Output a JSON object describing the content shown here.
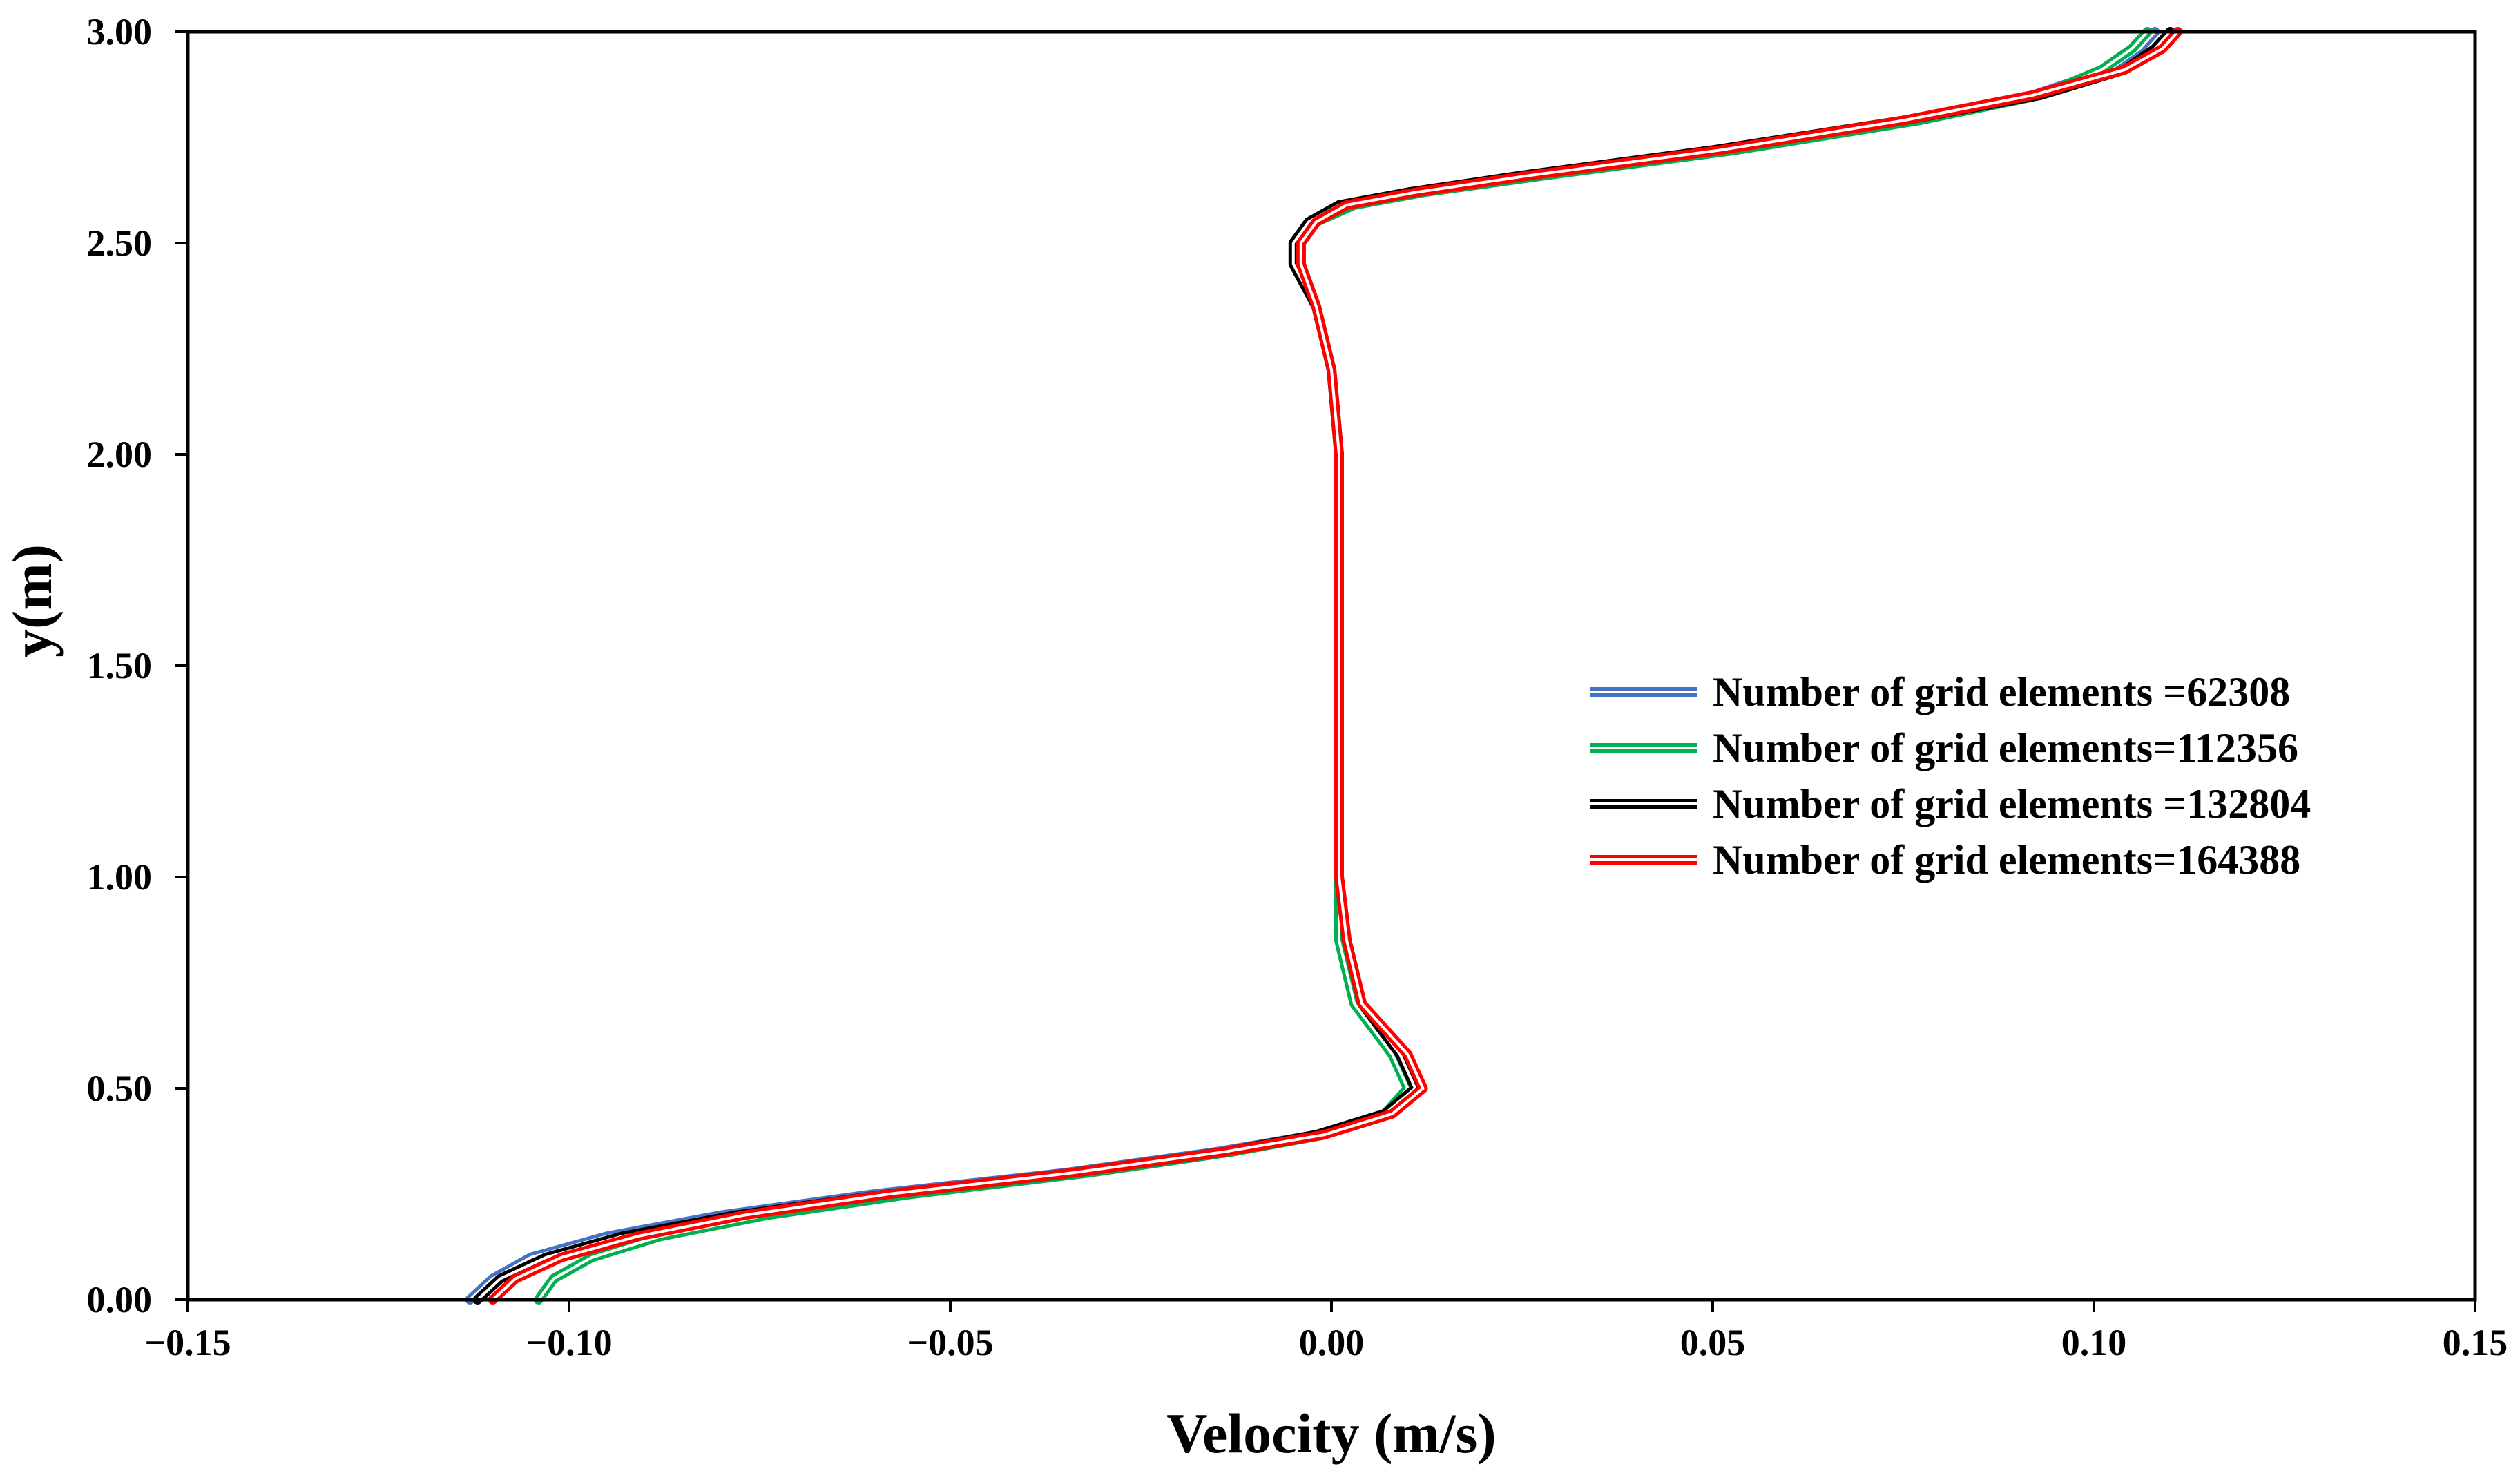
{
  "chart_data": {
    "type": "line",
    "title": "",
    "xlabel": "Velocity (m/s)",
    "ylabel": "y(m)",
    "xlim": [
      -0.15,
      0.15
    ],
    "ylim": [
      0.0,
      3.0
    ],
    "grid": false,
    "legend_position": "center-right",
    "x_ticks": [
      -0.15,
      -0.1,
      -0.05,
      0.0,
      0.05,
      0.1,
      0.15
    ],
    "x_tick_labels": [
      "−0.15",
      "−0.10",
      "−0.05",
      "0.00",
      "0.05",
      "0.10",
      "0.15"
    ],
    "y_ticks": [
      0.0,
      0.5,
      1.0,
      1.5,
      2.0,
      2.5,
      3.0
    ],
    "y_tick_labels": [
      "0.00",
      "0.50",
      "1.00",
      "1.50",
      "2.00",
      "2.50",
      "3.00"
    ],
    "series": [
      {
        "name": "Number of grid elements =62308",
        "color": "#4472C4",
        "points": [
          [
            -0.113,
            0.0
          ],
          [
            -0.11,
            0.05
          ],
          [
            -0.105,
            0.1
          ],
          [
            -0.095,
            0.15
          ],
          [
            -0.08,
            0.2
          ],
          [
            -0.06,
            0.25
          ],
          [
            -0.035,
            0.3
          ],
          [
            -0.015,
            0.35
          ],
          [
            -0.002,
            0.39
          ],
          [
            0.007,
            0.44
          ],
          [
            0.011,
            0.5
          ],
          [
            0.009,
            0.58
          ],
          [
            0.004,
            0.7
          ],
          [
            0.002,
            0.85
          ],
          [
            0.001,
            1.0
          ],
          [
            0.001,
            1.2
          ],
          [
            0.001,
            1.4
          ],
          [
            0.001,
            1.6
          ],
          [
            0.001,
            1.8
          ],
          [
            0.001,
            2.0
          ],
          [
            0.0,
            2.2
          ],
          [
            -0.002,
            2.35
          ],
          [
            -0.004,
            2.45
          ],
          [
            -0.004,
            2.5
          ],
          [
            -0.002,
            2.55
          ],
          [
            0.002,
            2.59
          ],
          [
            0.01,
            2.62
          ],
          [
            0.025,
            2.66
          ],
          [
            0.05,
            2.72
          ],
          [
            0.075,
            2.79
          ],
          [
            0.092,
            2.85
          ],
          [
            0.102,
            2.91
          ],
          [
            0.106,
            2.96
          ],
          [
            0.108,
            3.0
          ]
        ]
      },
      {
        "name": "Number of grid elements=112356",
        "color": "#00B050",
        "points": [
          [
            -0.104,
            0.0
          ],
          [
            -0.102,
            0.05
          ],
          [
            -0.097,
            0.1
          ],
          [
            -0.088,
            0.15
          ],
          [
            -0.074,
            0.2
          ],
          [
            -0.055,
            0.25
          ],
          [
            -0.032,
            0.3
          ],
          [
            -0.013,
            0.35
          ],
          [
            -0.001,
            0.39
          ],
          [
            0.007,
            0.44
          ],
          [
            0.01,
            0.5
          ],
          [
            0.008,
            0.58
          ],
          [
            0.003,
            0.7
          ],
          [
            0.001,
            0.85
          ],
          [
            0.001,
            1.0
          ],
          [
            0.001,
            1.2
          ],
          [
            0.001,
            1.4
          ],
          [
            0.001,
            1.6
          ],
          [
            0.001,
            1.8
          ],
          [
            0.001,
            2.0
          ],
          [
            0.0,
            2.2
          ],
          [
            -0.002,
            2.35
          ],
          [
            -0.004,
            2.45
          ],
          [
            -0.004,
            2.5
          ],
          [
            -0.002,
            2.55
          ],
          [
            0.003,
            2.59
          ],
          [
            0.012,
            2.62
          ],
          [
            0.028,
            2.66
          ],
          [
            0.053,
            2.72
          ],
          [
            0.077,
            2.79
          ],
          [
            0.093,
            2.85
          ],
          [
            0.101,
            2.91
          ],
          [
            0.105,
            2.96
          ],
          [
            0.107,
            3.0
          ]
        ]
      },
      {
        "name": "Number of grid elements =132804",
        "color": "#000000",
        "points": [
          [
            -0.112,
            0.0
          ],
          [
            -0.109,
            0.05
          ],
          [
            -0.103,
            0.1
          ],
          [
            -0.093,
            0.15
          ],
          [
            -0.078,
            0.2
          ],
          [
            -0.058,
            0.25
          ],
          [
            -0.034,
            0.3
          ],
          [
            -0.014,
            0.35
          ],
          [
            -0.002,
            0.39
          ],
          [
            0.007,
            0.44
          ],
          [
            0.011,
            0.5
          ],
          [
            0.009,
            0.58
          ],
          [
            0.004,
            0.7
          ],
          [
            0.002,
            0.85
          ],
          [
            0.001,
            1.0
          ],
          [
            0.001,
            1.2
          ],
          [
            0.001,
            1.4
          ],
          [
            0.001,
            1.6
          ],
          [
            0.001,
            1.8
          ],
          [
            0.001,
            2.0
          ],
          [
            0.0,
            2.2
          ],
          [
            -0.002,
            2.35
          ],
          [
            -0.005,
            2.45
          ],
          [
            -0.005,
            2.5
          ],
          [
            -0.003,
            2.55
          ],
          [
            0.001,
            2.59
          ],
          [
            0.01,
            2.62
          ],
          [
            0.025,
            2.66
          ],
          [
            0.05,
            2.72
          ],
          [
            0.075,
            2.79
          ],
          [
            0.093,
            2.85
          ],
          [
            0.104,
            2.91
          ],
          [
            0.108,
            2.96
          ],
          [
            0.11,
            3.0
          ]
        ]
      },
      {
        "name": "Number of grid elements=164388",
        "color": "#FF0000",
        "points": [
          [
            -0.11,
            0.0
          ],
          [
            -0.107,
            0.05
          ],
          [
            -0.101,
            0.1
          ],
          [
            -0.091,
            0.15
          ],
          [
            -0.077,
            0.2
          ],
          [
            -0.058,
            0.25
          ],
          [
            -0.034,
            0.3
          ],
          [
            -0.014,
            0.35
          ],
          [
            -0.001,
            0.39
          ],
          [
            0.008,
            0.44
          ],
          [
            0.012,
            0.5
          ],
          [
            0.01,
            0.58
          ],
          [
            0.004,
            0.7
          ],
          [
            0.002,
            0.85
          ],
          [
            0.001,
            1.0
          ],
          [
            0.001,
            1.2
          ],
          [
            0.001,
            1.4
          ],
          [
            0.001,
            1.6
          ],
          [
            0.001,
            1.8
          ],
          [
            0.001,
            2.0
          ],
          [
            0.0,
            2.2
          ],
          [
            -0.002,
            2.35
          ],
          [
            -0.004,
            2.45
          ],
          [
            -0.004,
            2.5
          ],
          [
            -0.002,
            2.55
          ],
          [
            0.002,
            2.59
          ],
          [
            0.011,
            2.62
          ],
          [
            0.026,
            2.66
          ],
          [
            0.051,
            2.72
          ],
          [
            0.075,
            2.79
          ],
          [
            0.092,
            2.85
          ],
          [
            0.104,
            2.91
          ],
          [
            0.109,
            2.96
          ],
          [
            0.111,
            3.0
          ]
        ]
      }
    ]
  }
}
